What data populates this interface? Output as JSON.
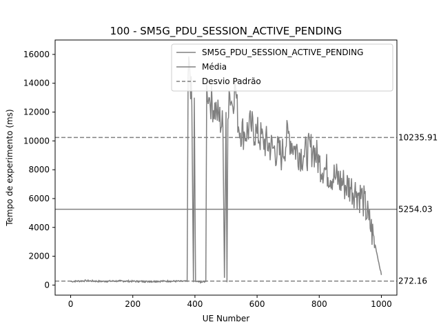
{
  "chart_data": {
    "type": "line",
    "title": "100 - SM5G_PDU_SESSION_ACTIVE_PENDING",
    "xlabel": "UE Number",
    "ylabel": "Tempo de experimento (ms)",
    "xlim": [
      -50,
      1050
    ],
    "ylim": [
      -700,
      17000
    ],
    "xticks": [
      0,
      200,
      400,
      600,
      800,
      1000
    ],
    "yticks": [
      0,
      2000,
      4000,
      6000,
      8000,
      10000,
      12000,
      14000,
      16000
    ],
    "grid": false,
    "legend_position": "top-right",
    "legend": [
      "SM5G_PDU_SESSION_ACTIVE_PENDING",
      "Média",
      "Desvio Padrão"
    ],
    "series": [
      {
        "name": "SM5G_PDU_SESSION_ACTIVE_PENDING",
        "color": "#808080",
        "x": [
          0,
          50,
          100,
          150,
          200,
          250,
          300,
          350,
          375,
          378,
          382,
          390,
          395,
          398,
          402,
          420,
          435,
          438,
          445,
          470,
          490,
          495,
          500,
          503,
          506,
          510,
          520,
          530,
          540,
          560,
          580,
          600,
          620,
          650,
          680,
          700,
          720,
          750,
          780,
          800,
          820,
          850,
          880,
          900,
          920,
          940,
          960,
          980,
          1000
        ],
        "y": [
          250,
          300,
          250,
          280,
          260,
          240,
          270,
          260,
          250,
          14500,
          15500,
          12500,
          200,
          13000,
          250,
          200,
          250,
          14000,
          13000,
          12000,
          11000,
          500,
          12000,
          200,
          11500,
          13500,
          12500,
          14000,
          11000,
          10500,
          11000,
          10500,
          10000,
          9500,
          9000,
          10500,
          9500,
          9000,
          9500,
          8500,
          8000,
          7500,
          7000,
          6800,
          6500,
          6000,
          4500,
          2800,
          700
        ]
      },
      {
        "name": "Média",
        "color": "#808080",
        "value": 5254.03,
        "label": "5254.03"
      },
      {
        "name": "Desvio Padrão",
        "color": "#808080",
        "values": [
          10235.91,
          272.16
        ],
        "labels": [
          "10235.91",
          "272.16"
        ]
      }
    ]
  }
}
